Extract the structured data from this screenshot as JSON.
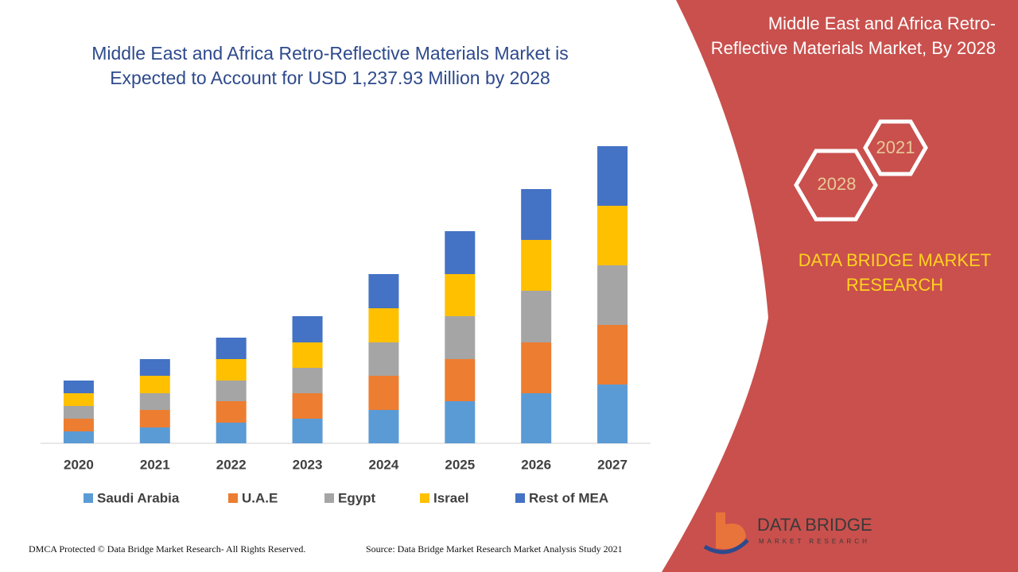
{
  "chart_data": {
    "type": "stacked-bar",
    "title": "Middle East and Africa Retro-Reflective Materials Market is Expected to Account for USD 1,237.93 Million by 2028",
    "categories": [
      "2020",
      "2021",
      "2022",
      "2023",
      "2024",
      "2025",
      "2026",
      "2027"
    ],
    "series": [
      {
        "name": "Saudi Arabia",
        "color": "#5b9bd5",
        "values": [
          15,
          20,
          26,
          31,
          42,
          53,
          63,
          74
        ]
      },
      {
        "name": "U.A.E",
        "color": "#ed7d31",
        "values": [
          16,
          22,
          27,
          32,
          43,
          53,
          64,
          75
        ]
      },
      {
        "name": "Egypt",
        "color": "#a5a5a5",
        "values": [
          16,
          21,
          26,
          32,
          42,
          54,
          65,
          75
        ]
      },
      {
        "name": "Israel",
        "color": "#ffc000",
        "values": [
          16,
          22,
          27,
          32,
          43,
          53,
          64,
          75
        ]
      },
      {
        "name": "Rest of MEA",
        "color": "#4472c4",
        "values": [
          16,
          21,
          27,
          33,
          43,
          54,
          64,
          75
        ]
      }
    ],
    "legend": "bottom"
  },
  "side_panel": {
    "title": "Middle East and Africa Retro-Reflective Materials Market, By 2028",
    "hexagons": [
      "2028",
      "2021"
    ],
    "brand": "DATA BRIDGE MARKET RESEARCH"
  },
  "logo": {
    "name": "DATA BRIDGE",
    "tagline": "MARKET RESEARCH"
  },
  "footer": {
    "left": "DMCA Protected © Data Bridge Market Research- All Rights Reserved.",
    "right": "Source: Data Bridge Market Research Market Analysis Study 2021"
  }
}
